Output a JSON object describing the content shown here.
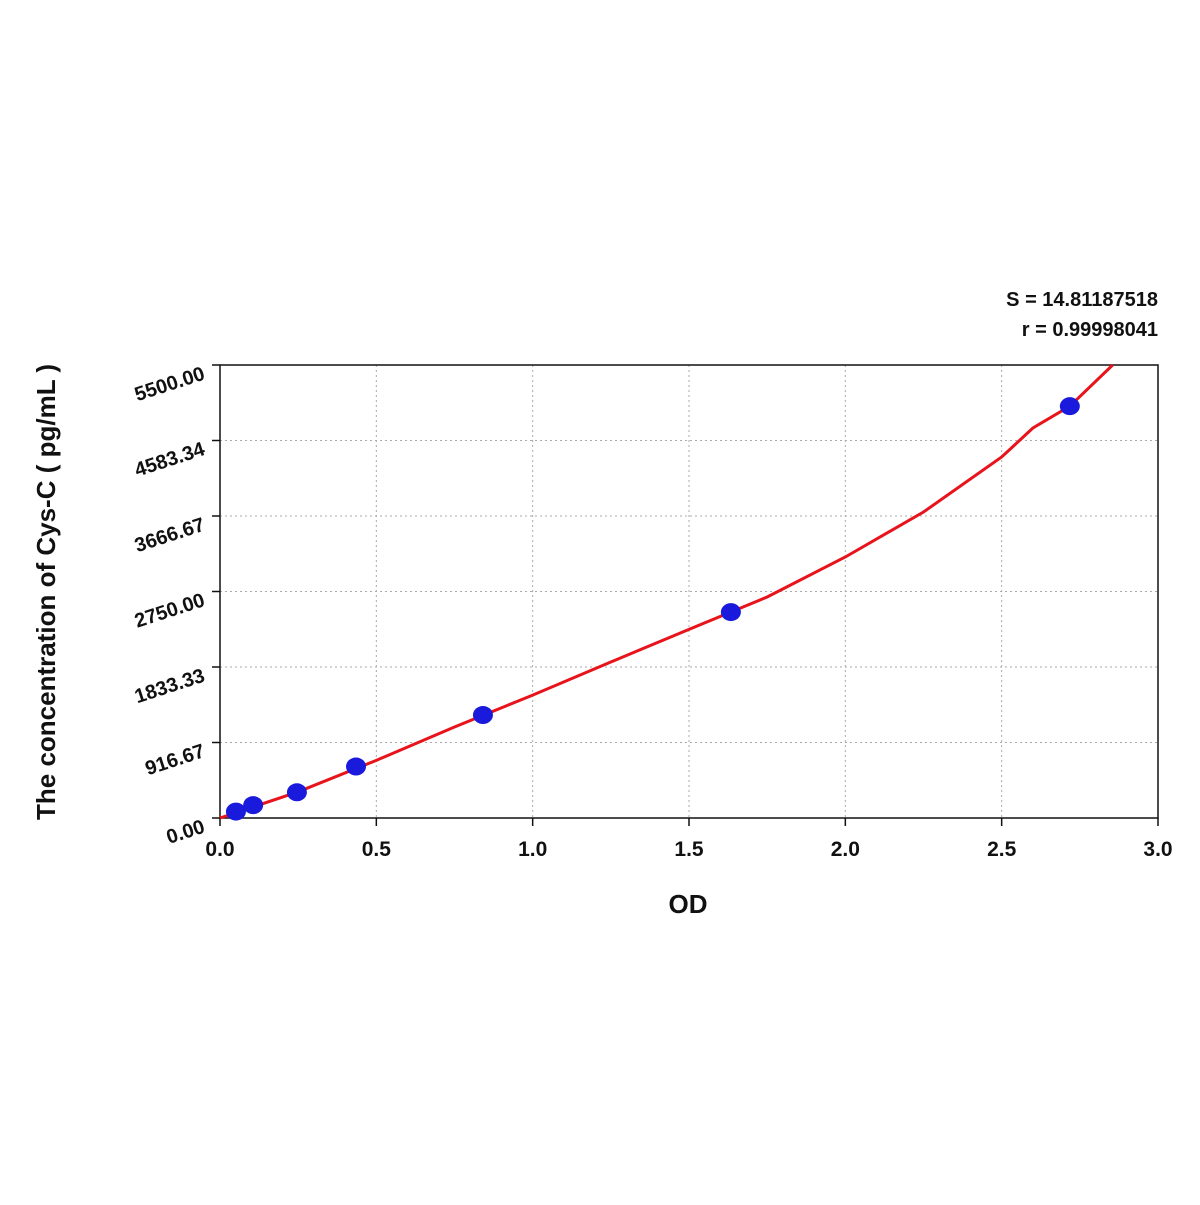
{
  "chart_data": {
    "type": "scatter",
    "x_label": "OD",
    "y_label": "The concentration of Cys-C ( pg/mL )",
    "annotations": [
      "S = 14.81187518",
      "r = 0.99998041"
    ],
    "x": [
      0.051,
      0.106,
      0.246,
      0.435,
      0.841,
      1.634,
      2.718
    ],
    "values": [
      78,
      156,
      312.5,
      625,
      1250,
      2500,
      5000
    ],
    "color": "#1a1adc",
    "curve": {
      "color": "#e8141c",
      "x": [
        0,
        0.25,
        0.5,
        0.75,
        1.0,
        1.25,
        1.5,
        1.75,
        2.0,
        2.25,
        2.5,
        2.6,
        2.718,
        2.855
      ],
      "values": [
        0,
        318,
        700,
        1105,
        1492,
        1894,
        2290,
        2683,
        3169,
        3715,
        4383,
        4735,
        5000,
        5500
      ]
    },
    "xlim": [
      0,
      3.0
    ],
    "ylim": [
      0,
      5500
    ],
    "xticks": [
      {
        "value": 0,
        "label": "0.0"
      },
      0.5,
      {
        "value": 1,
        "label": "1.0"
      },
      1.5,
      {
        "value": 2,
        "label": "2.0"
      },
      2.5,
      {
        "value": 3,
        "label": "3.0"
      }
    ],
    "yticks": [
      {
        "value": 0,
        "label": "0.00"
      },
      916.67,
      1833.33,
      {
        "value": 2750,
        "label": "2750.00"
      },
      3666.67,
      4583.34,
      {
        "value": 5500,
        "label": "5500.00"
      }
    ],
    "grid": true
  }
}
